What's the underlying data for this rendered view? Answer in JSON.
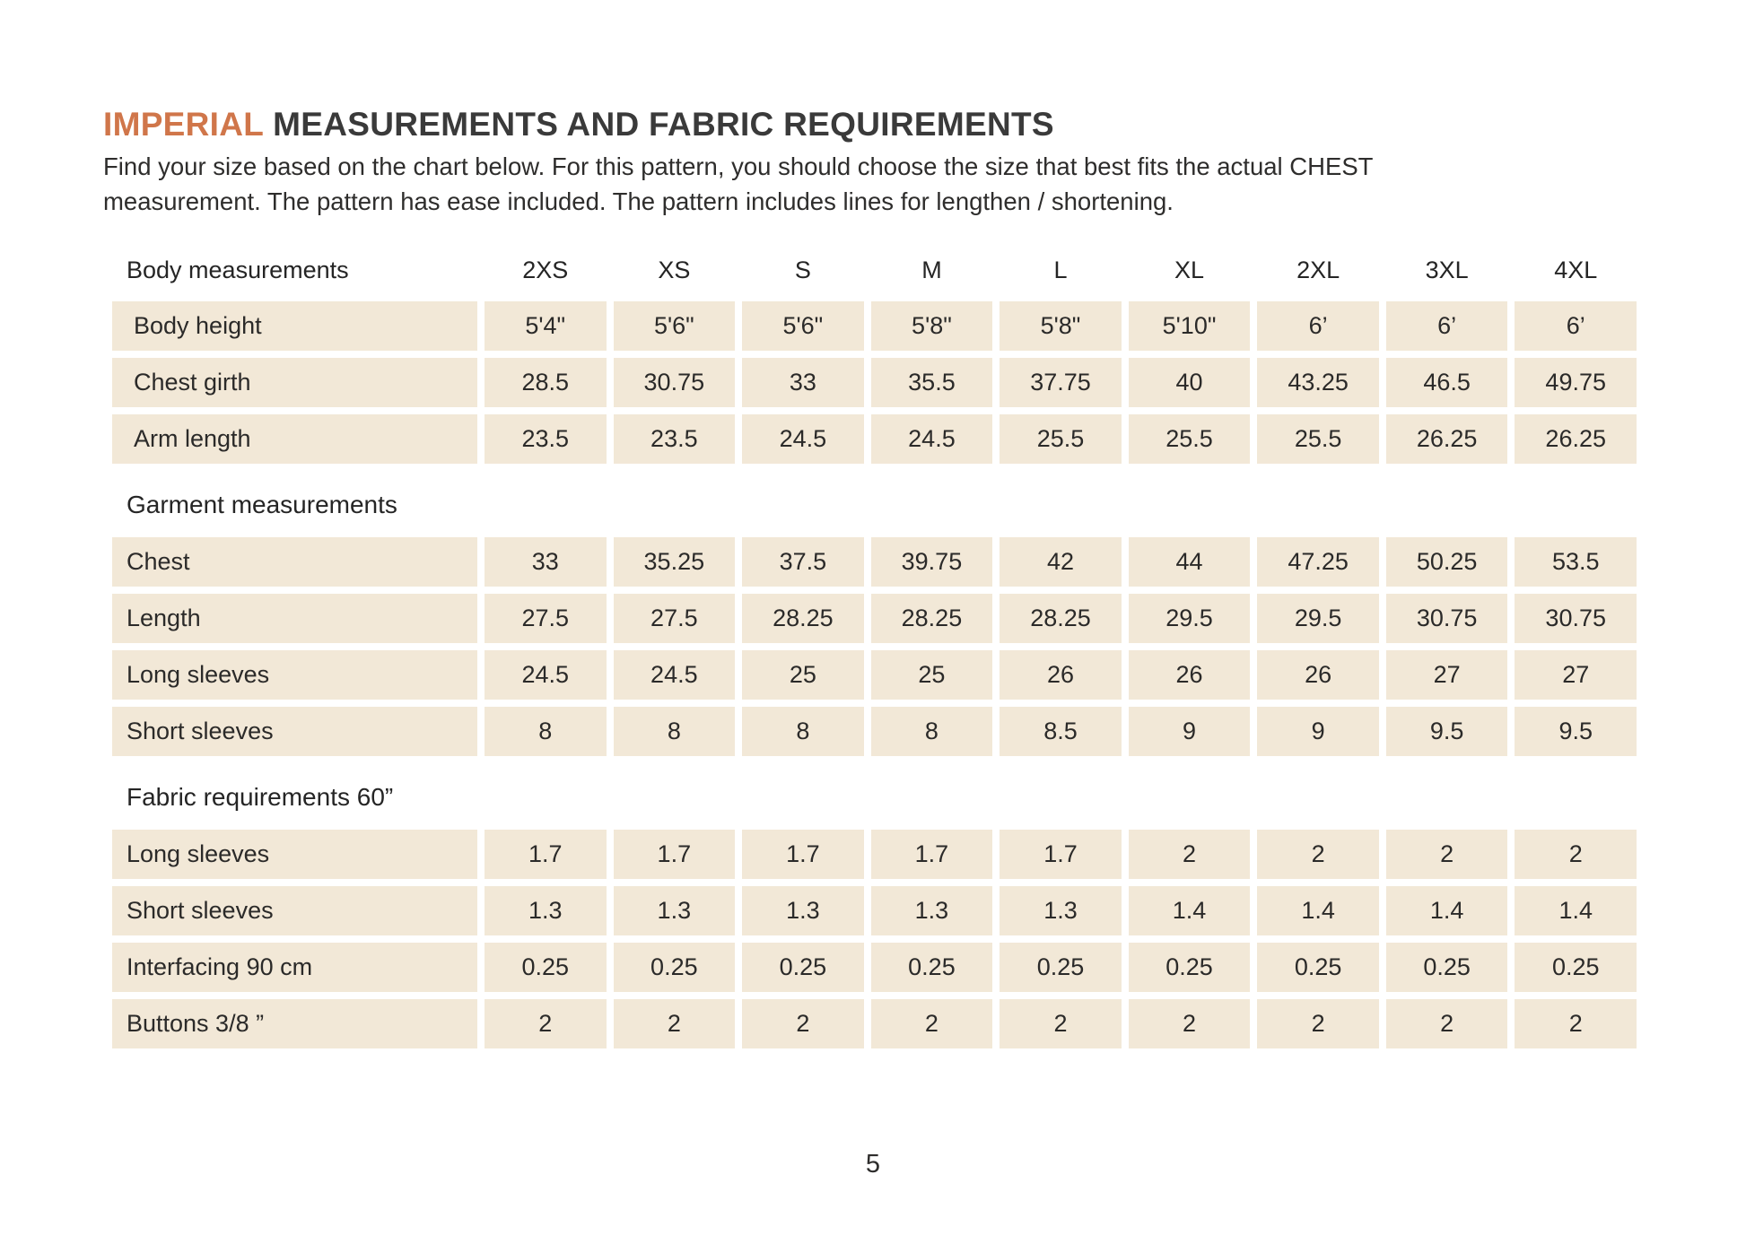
{
  "header": {
    "title_highlight": "IMPERIAL",
    "title_rest": " MEASUREMENTS AND FABRIC REQUIREMENTS",
    "intro_line1": "Find your size based on the chart below. For this pattern, you should choose the size that best fits the actual CHEST",
    "intro_line2": "measurement. The pattern has ease included. The pattern includes lines for lengthen / shortening."
  },
  "colors": {
    "accent": "#d0764a",
    "cell_background": "#f2e8d7",
    "text": "#2e2d2c"
  },
  "table": {
    "header": {
      "label": "Body measurements",
      "sizes": [
        "2XS",
        "XS",
        "S",
        "M",
        "L",
        "XL",
        "2XL",
        "3XL",
        "4XL"
      ]
    },
    "sections": [
      {
        "title": "",
        "rows": [
          {
            "label": "Body height",
            "values": [
              "5'4\"",
              "5'6\"",
              "5'6\"",
              "5'8\"",
              "5'8\"",
              "5'10\"",
              "6’",
              "6’",
              "6’"
            ]
          },
          {
            "label": "Chest girth",
            "values": [
              "28.5",
              "30.75",
              "33",
              "35.5",
              "37.75",
              "40",
              "43.25",
              "46.5",
              "49.75"
            ]
          },
          {
            "label": "Arm length",
            "values": [
              "23.5",
              "23.5",
              "24.5",
              "24.5",
              "25.5",
              "25.5",
              "25.5",
              "26.25",
              "26.25"
            ]
          }
        ]
      },
      {
        "title": "Garment measurements",
        "rows": [
          {
            "label": "Chest",
            "values": [
              "33",
              "35.25",
              "37.5",
              "39.75",
              "42",
              "44",
              "47.25",
              "50.25",
              "53.5"
            ]
          },
          {
            "label": "Length",
            "values": [
              "27.5",
              "27.5",
              "28.25",
              "28.25",
              "28.25",
              "29.5",
              "29.5",
              "30.75",
              "30.75"
            ]
          },
          {
            "label": "Long sleeves",
            "values": [
              "24.5",
              "24.5",
              "25",
              "25",
              "26",
              "26",
              "26",
              "27",
              "27"
            ]
          },
          {
            "label": "Short sleeves",
            "values": [
              "8",
              "8",
              "8",
              "8",
              "8.5",
              "9",
              "9",
              "9.5",
              "9.5"
            ]
          }
        ]
      },
      {
        "title": "Fabric requirements 60”",
        "rows": [
          {
            "label": "Long sleeves",
            "values": [
              "1.7",
              "1.7",
              "1.7",
              "1.7",
              "1.7",
              "2",
              "2",
              "2",
              "2"
            ]
          },
          {
            "label": "Short sleeves",
            "values": [
              "1.3",
              "1.3",
              "1.3",
              "1.3",
              "1.3",
              "1.4",
              "1.4",
              "1.4",
              "1.4"
            ]
          },
          {
            "label": "Interfacing 90 cm",
            "values": [
              "0.25",
              "0.25",
              "0.25",
              "0.25",
              "0.25",
              "0.25",
              "0.25",
              "0.25",
              "0.25"
            ]
          },
          {
            "label": "Buttons 3/8 ”",
            "values": [
              "2",
              "2",
              "2",
              "2",
              "2",
              "2",
              "2",
              "2",
              "2"
            ]
          }
        ]
      }
    ]
  },
  "footer": {
    "page_number": "5"
  }
}
